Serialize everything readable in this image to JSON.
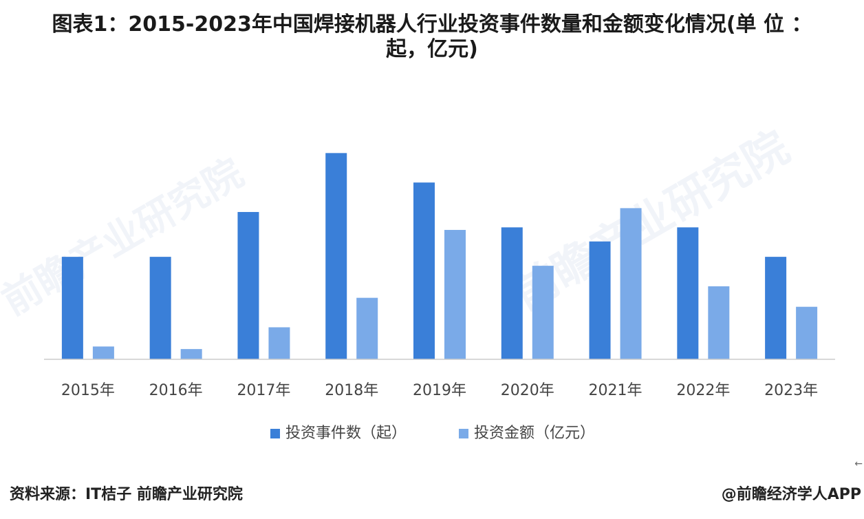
{
  "title": {
    "line1": "图表1：2015-2023年中国焊接机器人行业投资事件数量和金额变化情况(单 位 ：",
    "line2": "起，亿元)"
  },
  "footer": {
    "source": "资料来源：IT桔子 前瞻产业研究院",
    "brand": "@前瞻经济学人APP"
  },
  "watermark": {
    "text": "前瞻产业研究院"
  },
  "colors": {
    "series1": "#3a7fd8",
    "series2": "#7aaae8",
    "axis": "#cccccc",
    "text": "#444444"
  },
  "chart_data": {
    "type": "bar",
    "categories": [
      "2015年",
      "2016年",
      "2017年",
      "2018年",
      "2019年",
      "2020年",
      "2021年",
      "2022年",
      "2023年"
    ],
    "series": [
      {
        "name": "投资事件数（起）",
        "values": [
          8,
          8,
          11.5,
          16.1,
          13.8,
          10.3,
          9.2,
          10.3,
          8
        ]
      },
      {
        "name": "投资金额（亿元）",
        "values": [
          1,
          0.8,
          2.5,
          4.8,
          10.1,
          7.3,
          11.8,
          5.7,
          4.1
        ]
      }
    ],
    "ylim": [
      0,
      18
    ],
    "grid": false,
    "legend": "bottom"
  }
}
